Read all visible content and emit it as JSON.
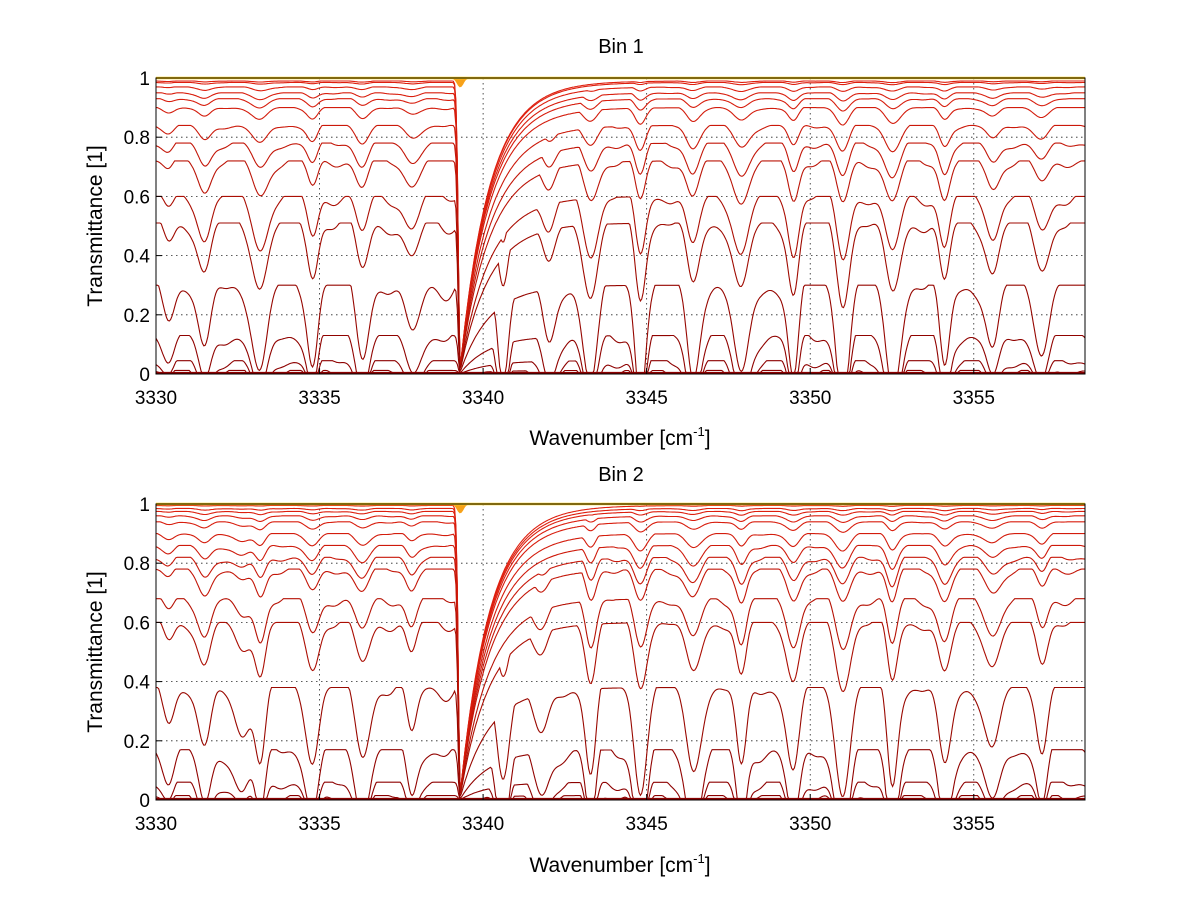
{
  "chart_data": [
    {
      "type": "line",
      "title": "Bin 1",
      "xlabel": "Wavenumber [cm",
      "xlabel_sup": "-1",
      "xlabel_close": "]",
      "ylabel": "Transmittance [1]",
      "xlim": [
        3330,
        3358.4
      ],
      "ylim": [
        0,
        1
      ],
      "xticks": [
        3330,
        3335,
        3340,
        3345,
        3350,
        3355
      ],
      "yticks": [
        0,
        0.2,
        0.4,
        0.6,
        0.8,
        1
      ],
      "grid": true,
      "legend": "none",
      "colors": {
        "dark": "#8b0000",
        "mid": "#e0200f",
        "light": "#f7a21a",
        "top": "#ffd21e"
      },
      "line_centers": [
        3330.4,
        3331.5,
        3333.2,
        3334.8,
        3336.3,
        3337.8,
        3340.6,
        3342.0,
        3343.3,
        3344.8,
        3346.4,
        3347.9,
        3349.5,
        3351.0,
        3352.5,
        3354.1,
        3355.6,
        3357.1
      ],
      "line_strengths": [
        0.25,
        0.8,
        0.95,
        0.75,
        0.7,
        0.6,
        0.9,
        0.75,
        1.0,
        1.1,
        1.0,
        1.1,
        1.05,
        1.15,
        1.1,
        1.0,
        0.75,
        0.6
      ],
      "strong_line_center": 3339.3,
      "series_baselines": [
        1,
        1,
        1,
        1,
        1,
        1,
        1,
        1,
        1,
        1,
        1,
        1,
        1,
        1,
        0.99,
        0.985,
        0.97,
        0.95,
        0.93,
        0.9,
        0.84,
        0.78,
        0.72,
        0.6,
        0.51,
        0.3,
        0.13,
        0.045,
        0.012
      ]
    },
    {
      "type": "line",
      "title": "Bin 2",
      "xlabel": "Wavenumber [cm",
      "xlabel_sup": "-1",
      "xlabel_close": "]",
      "ylabel": "Transmittance [1]",
      "xlim": [
        3330,
        3358.4
      ],
      "ylim": [
        0,
        1
      ],
      "xticks": [
        3330,
        3335,
        3340,
        3345,
        3350,
        3355
      ],
      "yticks": [
        0,
        0.2,
        0.4,
        0.6,
        0.8,
        1
      ],
      "grid": true,
      "legend": "none",
      "colors": {
        "dark": "#8b0000",
        "mid": "#e0200f",
        "light": "#f7a21a",
        "top": "#ffd21e"
      },
      "line_centers": [
        3330.4,
        3331.5,
        3332.6,
        3333.2,
        3334.8,
        3336.3,
        3337.8,
        3340.6,
        3341.8,
        3343.3,
        3344.8,
        3346.4,
        3347.9,
        3349.5,
        3351.0,
        3352.5,
        3354.1,
        3355.6,
        3357.1
      ],
      "line_strengths": [
        0.3,
        0.85,
        0.5,
        0.95,
        0.8,
        0.75,
        0.65,
        0.95,
        0.7,
        1.0,
        1.15,
        1.0,
        1.1,
        1.05,
        1.15,
        1.15,
        1.05,
        0.8,
        0.65
      ],
      "strong_line_center": 3339.3,
      "series_baselines": [
        1,
        1,
        1,
        1,
        1,
        1,
        1,
        1,
        1,
        1,
        1,
        1,
        1,
        1,
        0.995,
        0.985,
        0.975,
        0.96,
        0.94,
        0.9,
        0.86,
        0.82,
        0.78,
        0.68,
        0.6,
        0.38,
        0.17,
        0.06,
        0.015
      ]
    }
  ]
}
